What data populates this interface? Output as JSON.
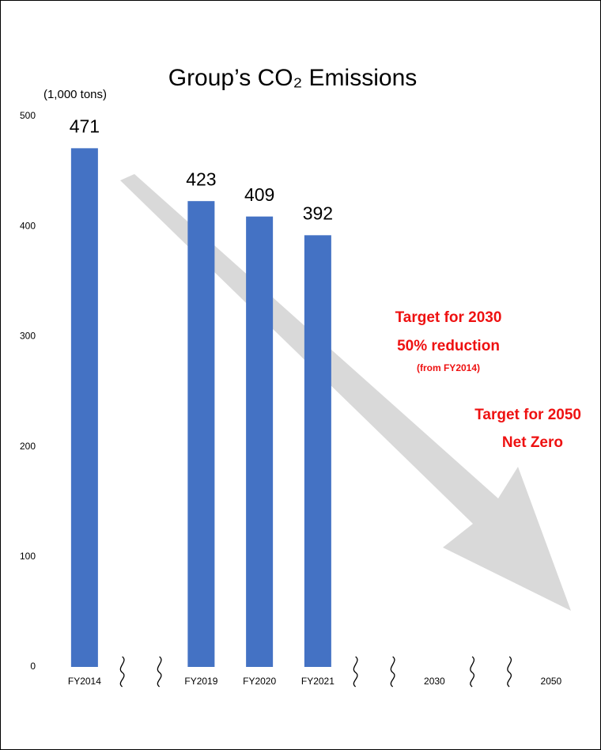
{
  "chart_data": {
    "type": "bar",
    "title": "Group’s CO₂ Emissions",
    "y_unit": "(1,000 tons)",
    "categories": [
      "FY2014",
      null,
      "FY2019",
      "FY2020",
      "FY2021",
      null,
      "2030",
      null,
      "2050"
    ],
    "values": [
      471,
      null,
      423,
      409,
      392,
      null,
      null,
      null,
      null
    ],
    "color": "#4472c4",
    "ylim": [
      0,
      500
    ],
    "yticks": [
      0,
      100,
      200,
      300,
      400,
      500
    ],
    "grid": false,
    "annotations": [
      "Target for 2030",
      "50% reduction",
      "(from FY2014)",
      "Target for 2050",
      "Net Zero"
    ]
  }
}
